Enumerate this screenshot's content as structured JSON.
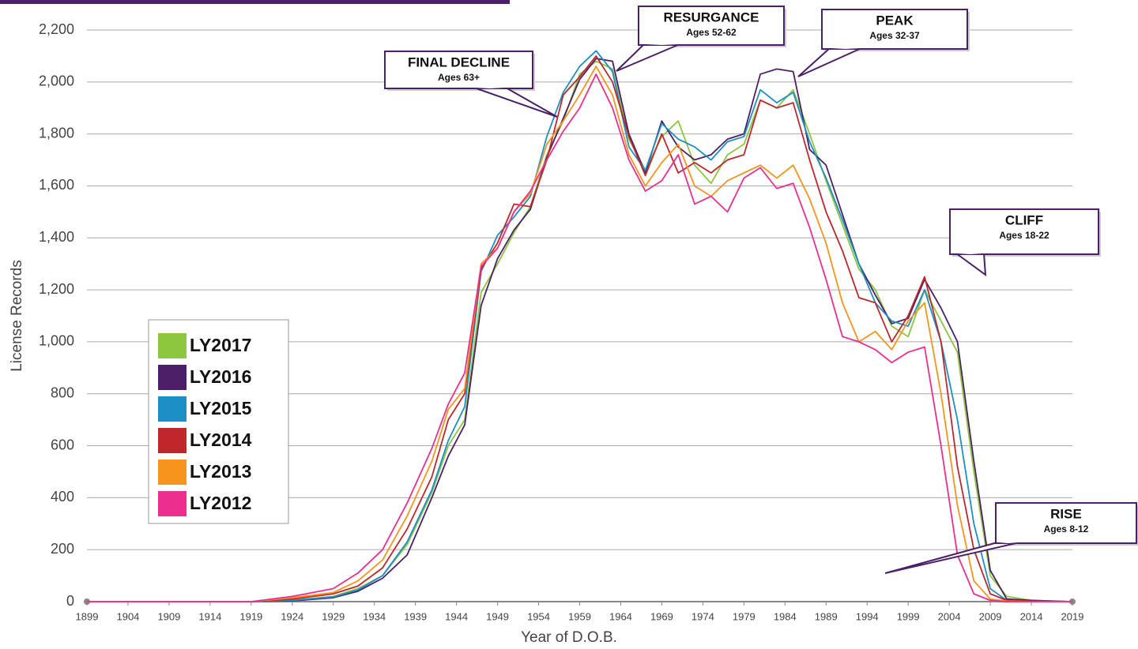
{
  "chart_data": {
    "type": "line",
    "x_label": "Year of D.O.B.",
    "y_label": "License Records",
    "x": [
      1899,
      1909,
      1919,
      1924,
      1929,
      1932,
      1935,
      1938,
      1941,
      1943,
      1945,
      1947,
      1949,
      1951,
      1953,
      1955,
      1957,
      1959,
      1961,
      1963,
      1965,
      1967,
      1969,
      1971,
      1973,
      1975,
      1977,
      1979,
      1981,
      1983,
      1985,
      1987,
      1989,
      1991,
      1993,
      1995,
      1997,
      1999,
      2001,
      2003,
      2005,
      2007,
      2009,
      2011,
      2014,
      2019
    ],
    "series": [
      {
        "name": "LY2017",
        "color": "#8dc63f",
        "values": [
          0,
          0,
          0,
          5,
          20,
          50,
          100,
          220,
          420,
          600,
          700,
          1190,
          1300,
          1420,
          1520,
          1720,
          1850,
          2030,
          2080,
          2050,
          1780,
          1660,
          1790,
          1850,
          1680,
          1610,
          1720,
          1760,
          1930,
          1900,
          1970,
          1800,
          1620,
          1450,
          1280,
          1200,
          1060,
          1020,
          1200,
          1080,
          960,
          500,
          100,
          20,
          5,
          0
        ]
      },
      {
        "name": "LY2016",
        "color": "#4b2069",
        "values": [
          0,
          0,
          0,
          3,
          15,
          40,
          90,
          180,
          400,
          560,
          680,
          1140,
          1320,
          1430,
          1510,
          1710,
          1860,
          2010,
          2090,
          2080,
          1800,
          1650,
          1850,
          1750,
          1700,
          1720,
          1780,
          1800,
          2030,
          2050,
          2040,
          1740,
          1680,
          1490,
          1300,
          1180,
          1070,
          1090,
          1240,
          1130,
          1000,
          540,
          120,
          10,
          5,
          0
        ]
      },
      {
        "name": "LY2015",
        "color": "#1b8fc6",
        "values": [
          0,
          0,
          0,
          5,
          18,
          45,
          100,
          230,
          430,
          620,
          750,
          1270,
          1410,
          1480,
          1560,
          1790,
          1960,
          2060,
          2120,
          2040,
          1750,
          1660,
          1840,
          1780,
          1750,
          1700,
          1770,
          1790,
          1970,
          1920,
          1960,
          1770,
          1630,
          1470,
          1300,
          1150,
          1080,
          1060,
          1200,
          1000,
          700,
          300,
          50,
          5,
          2,
          0
        ]
      },
      {
        "name": "LY2014",
        "color": "#c0272d",
        "values": [
          0,
          0,
          0,
          10,
          30,
          60,
          130,
          280,
          480,
          700,
          800,
          1280,
          1380,
          1530,
          1520,
          1700,
          1950,
          2020,
          2100,
          2000,
          1790,
          1640,
          1800,
          1650,
          1690,
          1650,
          1700,
          1720,
          1930,
          1900,
          1920,
          1700,
          1500,
          1350,
          1170,
          1150,
          1000,
          1100,
          1250,
          1000,
          520,
          200,
          30,
          5,
          2,
          0
        ]
      },
      {
        "name": "LY2013",
        "color": "#f7941d",
        "values": [
          0,
          0,
          0,
          15,
          35,
          80,
          160,
          330,
          540,
          740,
          820,
          1300,
          1360,
          1500,
          1570,
          1760,
          1850,
          1950,
          2060,
          1950,
          1720,
          1600,
          1690,
          1760,
          1600,
          1560,
          1620,
          1650,
          1680,
          1630,
          1680,
          1550,
          1380,
          1150,
          1000,
          1040,
          970,
          1080,
          1150,
          800,
          370,
          80,
          10,
          2,
          0,
          0
        ]
      },
      {
        "name": "LY2012",
        "color": "#ec2f8f",
        "values": [
          0,
          0,
          0,
          20,
          50,
          110,
          200,
          380,
          590,
          760,
          880,
          1290,
          1360,
          1500,
          1580,
          1700,
          1810,
          1900,
          2030,
          1900,
          1700,
          1580,
          1620,
          1720,
          1530,
          1560,
          1500,
          1630,
          1670,
          1590,
          1610,
          1440,
          1240,
          1020,
          1000,
          970,
          920,
          960,
          980,
          600,
          180,
          30,
          5,
          0,
          0,
          0
        ]
      }
    ],
    "xlim": [
      1899,
      2019
    ],
    "xticks": [
      1899,
      1904,
      1909,
      1914,
      1919,
      1924,
      1929,
      1934,
      1939,
      1944,
      1949,
      1954,
      1959,
      1964,
      1969,
      1974,
      1979,
      1984,
      1989,
      1994,
      1999,
      2004,
      2009,
      2014,
      2019
    ],
    "ylim": [
      0,
      2200
    ],
    "yticks": [
      0,
      200,
      400,
      600,
      800,
      {
        "value": 1000,
        "label": "1,000"
      },
      {
        "value": 1200,
        "label": "1,200"
      },
      {
        "value": 1400,
        "label": "1,400"
      },
      {
        "value": 1600,
        "label": "1,600"
      },
      {
        "value": 1800,
        "label": "1,800"
      },
      {
        "value": 2000,
        "label": "2,000"
      },
      {
        "value": 2200,
        "label": "2,200"
      }
    ],
    "grid": true,
    "legend": "left",
    "annotations": [
      {
        "title": "FINAL DECLINE",
        "subtitle": "Ages 63+"
      },
      {
        "title": "RESURGANCE",
        "subtitle": "Ages 52-62"
      },
      {
        "title": "PEAK",
        "subtitle": "Ages 32-37"
      },
      {
        "title": "CLIFF",
        "subtitle": "Ages 18-22"
      },
      {
        "title": "RISE",
        "subtitle": "Ages 8-12"
      }
    ]
  }
}
